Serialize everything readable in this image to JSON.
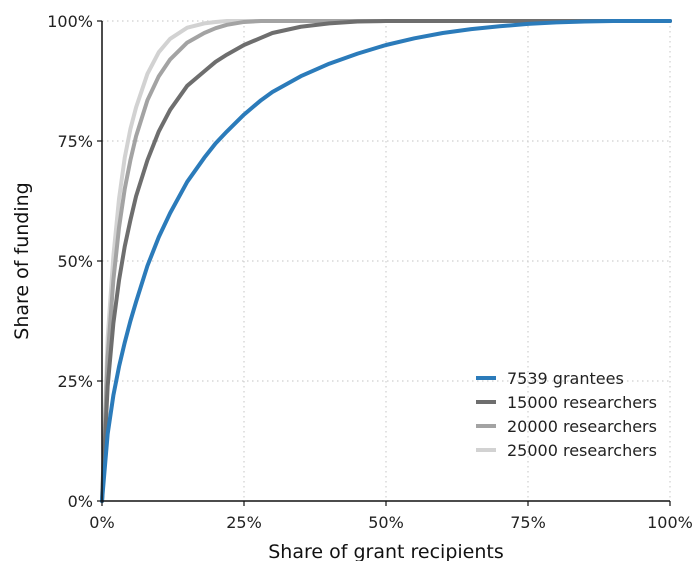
{
  "chart_data": {
    "type": "line",
    "title": "",
    "xlabel": "Share of grant recipients",
    "ylabel": "Share of funding",
    "xlim": [
      0,
      100
    ],
    "ylim": [
      0,
      100
    ],
    "x_unit": "%",
    "y_unit": "%",
    "x_ticks": [
      "0%",
      "25%",
      "50%",
      "75%",
      "100%"
    ],
    "y_ticks": [
      "0%",
      "25%",
      "50%",
      "75%",
      "100%"
    ],
    "grid": true,
    "legend_position": "bottom-right",
    "x": [
      0,
      1,
      2,
      3,
      4,
      5,
      6,
      8,
      10,
      12,
      15,
      18,
      20,
      22,
      25,
      28,
      30,
      35,
      40,
      45,
      50,
      55,
      60,
      65,
      70,
      75,
      80,
      85,
      90,
      95,
      100
    ],
    "series": [
      {
        "name": "7539 grantees",
        "color": "#2b7bba",
        "values": [
          0,
          14,
          22,
          28,
          33,
          37.5,
          41.5,
          49,
          55,
          60,
          66.5,
          71.5,
          74.5,
          77,
          80.5,
          83.5,
          85.2,
          88.5,
          91.1,
          93.2,
          95,
          96.4,
          97.5,
          98.3,
          98.9,
          99.4,
          99.7,
          99.9,
          100,
          100,
          100
        ]
      },
      {
        "name": "15000 researchers",
        "color": "#6e6e6e",
        "values": [
          0,
          24,
          37,
          46,
          53,
          58.5,
          63.5,
          71,
          77,
          81.5,
          86.5,
          89.5,
          91.5,
          93,
          95,
          96.5,
          97.5,
          98.8,
          99.5,
          99.9,
          100,
          100,
          100,
          100,
          100,
          100,
          100,
          100,
          100,
          100,
          100
        ]
      },
      {
        "name": "20000 researchers",
        "color": "#a3a3a3",
        "values": [
          0,
          30,
          46,
          57,
          65,
          71,
          76,
          83.5,
          88.5,
          92,
          95.5,
          97.5,
          98.5,
          99.2,
          99.8,
          100,
          100,
          100,
          100,
          100,
          100,
          100,
          100,
          100,
          100,
          100,
          100,
          100,
          100,
          100,
          100
        ]
      },
      {
        "name": "25000 researchers",
        "color": "#d2d2d2",
        "values": [
          0,
          34,
          51,
          63,
          71.5,
          77.5,
          82,
          89,
          93.5,
          96.3,
          98.6,
          99.5,
          99.8,
          100,
          100,
          100,
          100,
          100,
          100,
          100,
          100,
          100,
          100,
          100,
          100,
          100,
          100,
          100,
          100,
          100,
          100
        ]
      }
    ]
  }
}
